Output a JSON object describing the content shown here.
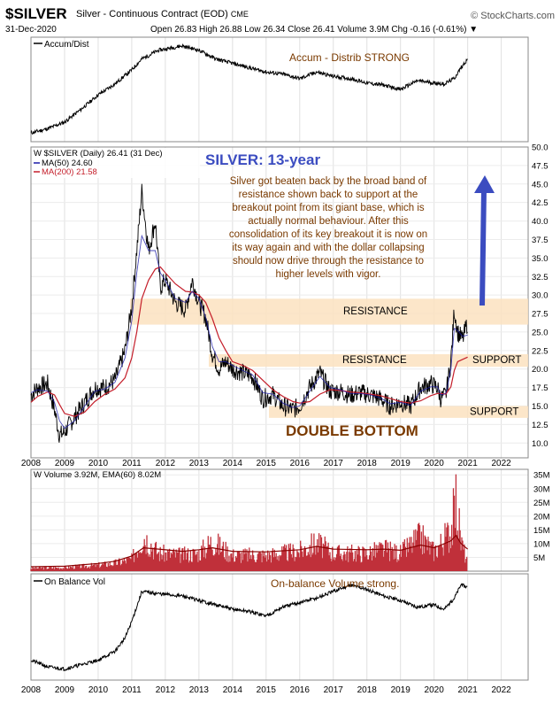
{
  "header": {
    "symbol": "$SILVER",
    "name": "Silver - Continuous Contract (EOD)",
    "exchange": "CME",
    "date": "31-Dec-2020",
    "ohlc": "Open 26.83  High 26.88  Low 26.34  Close 26.41  Volume 3.9M  Chg -0.16 (-0.61%) ▼",
    "source": "© StockCharts.com"
  },
  "colors": {
    "price": "#000000",
    "ma50": "#1a1aa8",
    "ma200": "#c41e2a",
    "band": "#fbe2c0",
    "volume": "#c0303a",
    "accent_blue": "#3b4cc0",
    "annot_brown": "#7a3a00"
  },
  "chart_data": [
    {
      "type": "line",
      "panel": "accum-dist",
      "title": "Accum/Dist",
      "annotation": "Accum - Distrib STRONG",
      "x": [
        2008.0,
        2008.5,
        2009.0,
        2009.5,
        2010.0,
        2010.5,
        2011.0,
        2011.3,
        2011.8,
        2012.5,
        2013.0,
        2013.5,
        2014.0,
        2014.5,
        2015.0,
        2015.5,
        2016.0,
        2016.5,
        2017.0,
        2017.5,
        2018.0,
        2018.5,
        2019.0,
        2019.5,
        2020.0,
        2020.3,
        2020.6,
        2020.8,
        2021.0
      ],
      "y": [
        10,
        14,
        20,
        32,
        45,
        55,
        68,
        78,
        86,
        90,
        86,
        78,
        74,
        70,
        66,
        64,
        60,
        66,
        62,
        60,
        56,
        54,
        50,
        58,
        56,
        55,
        60,
        70,
        78
      ]
    },
    {
      "type": "line",
      "panel": "price",
      "legend": [
        "$SILVER (Daily) 26.41 (31 Dec)",
        "MA(50) 24.60",
        "MA(200) 21.58"
      ],
      "title": "SILVER: 13-year",
      "note": "Silver got beaten back by the broad band of resistance shown back to support at the breakout  point from its giant base, which is actually normal behaviour. After this consolidation of its key breakout it is now on its way again and with the dollar collapsing should now drive through the resistance to higher levels with vigor.",
      "labels": {
        "resistance_upper": "RESISTANCE",
        "resistance_lower": "RESISTANCE",
        "support_mid": "SUPPORT",
        "support_low": "SUPPORT",
        "double_bottom": "DOUBLE BOTTOM"
      },
      "bands": [
        [
          26.0,
          29.5
        ],
        [
          20.3,
          22.0
        ],
        [
          13.4,
          15.0
        ]
      ],
      "ylim": [
        8.0,
        50.0
      ],
      "yticks": [
        10.0,
        12.5,
        15.0,
        17.5,
        20.0,
        22.5,
        25.0,
        27.5,
        30.0,
        32.5,
        35.0,
        37.5,
        40.0,
        42.5,
        45.0,
        47.5,
        50.0
      ],
      "x": [
        2008.0,
        2008.2,
        2008.5,
        2008.7,
        2008.85,
        2009.0,
        2009.3,
        2009.6,
        2009.9,
        2010.2,
        2010.5,
        2010.8,
        2011.0,
        2011.15,
        2011.3,
        2011.5,
        2011.7,
        2011.85,
        2012.0,
        2012.3,
        2012.6,
        2012.8,
        2013.0,
        2013.2,
        2013.4,
        2013.6,
        2013.8,
        2014.0,
        2014.3,
        2014.6,
        2014.9,
        2015.2,
        2015.5,
        2015.8,
        2016.0,
        2016.3,
        2016.6,
        2016.9,
        2017.2,
        2017.5,
        2017.8,
        2018.1,
        2018.4,
        2018.7,
        2019.0,
        2019.3,
        2019.6,
        2019.9,
        2020.1,
        2020.2,
        2020.35,
        2020.5,
        2020.6,
        2020.7,
        2020.85,
        2021.0
      ],
      "y": [
        16.5,
        17.5,
        18.0,
        14.5,
        11.0,
        11.5,
        13.5,
        15.5,
        17.5,
        17.5,
        18.5,
        22.5,
        28.5,
        36.0,
        44.0,
        36.0,
        40.0,
        31.0,
        32.0,
        29.0,
        28.0,
        32.0,
        29.0,
        27.0,
        22.0,
        20.0,
        21.0,
        20.0,
        19.5,
        19.0,
        16.0,
        16.5,
        15.0,
        14.5,
        15.0,
        17.5,
        19.5,
        17.0,
        17.0,
        16.5,
        16.8,
        16.5,
        16.0,
        15.0,
        15.5,
        15.0,
        17.5,
        18.0,
        17.5,
        16.0,
        16.5,
        21.0,
        28.0,
        25.0,
        24.0,
        26.4
      ],
      "ma50": [
        16.8,
        17.2,
        17.0,
        15.5,
        13.0,
        12.0,
        13.0,
        15.0,
        17.0,
        17.3,
        18.2,
        21.5,
        26.5,
        33.0,
        38.0,
        36.0,
        36.0,
        33.0,
        32.0,
        29.5,
        29.0,
        30.5,
        29.5,
        27.0,
        23.0,
        21.0,
        21.0,
        20.5,
        19.8,
        19.2,
        16.8,
        16.6,
        15.4,
        14.8,
        15.0,
        17.0,
        19.0,
        17.5,
        17.2,
        16.7,
        16.7,
        16.5,
        16.1,
        15.3,
        15.5,
        15.1,
        17.0,
        17.6,
        17.6,
        16.5,
        16.7,
        20.0,
        25.5,
        25.2,
        24.4,
        24.6
      ],
      "ma200": [
        15.5,
        16.3,
        16.9,
        16.5,
        15.2,
        14.0,
        13.6,
        14.2,
        15.6,
        16.6,
        17.3,
        18.8,
        21.5,
        25.0,
        29.5,
        32.0,
        33.5,
        33.8,
        33.0,
        31.5,
        30.5,
        30.4,
        30.0,
        29.0,
        26.8,
        24.2,
        22.5,
        21.0,
        20.5,
        19.8,
        18.5,
        17.2,
        16.3,
        15.6,
        15.4,
        15.6,
        16.6,
        17.2,
        17.1,
        16.9,
        16.8,
        16.6,
        16.4,
        16.0,
        15.6,
        15.4,
        15.7,
        16.4,
        16.7,
        16.7,
        16.6,
        17.6,
        19.8,
        21.0,
        21.3,
        21.6
      ]
    },
    {
      "type": "bar",
      "panel": "volume",
      "legend": [
        "Volume 3.92M, EMA(60) 8.02M"
      ],
      "ylim": [
        0,
        37
      ],
      "yticks": [
        "5M",
        "10M",
        "15M",
        "20M",
        "25M",
        "30M",
        "35M"
      ],
      "ytick_values": [
        5,
        10,
        15,
        20,
        25,
        30,
        35
      ],
      "x": [
        2008.0,
        2009.0,
        2010.0,
        2010.5,
        2011.0,
        2011.35,
        2011.8,
        2012.5,
        2013.0,
        2013.4,
        2014.0,
        2015.0,
        2016.0,
        2016.5,
        2017.0,
        2018.0,
        2018.5,
        2019.0,
        2019.6,
        2020.0,
        2020.2,
        2020.5,
        2020.65,
        2020.8,
        2021.0
      ],
      "values": [
        1.5,
        1.8,
        3.0,
        4.0,
        6.0,
        18.0,
        9.0,
        8.0,
        9.0,
        15.0,
        8.0,
        8.0,
        10.0,
        14.0,
        9.0,
        9.0,
        11.0,
        9.0,
        17.0,
        10.0,
        14.0,
        20.0,
        35.0,
        15.0,
        4.0
      ],
      "ema": [
        1.6,
        1.8,
        2.8,
        3.6,
        5.5,
        8.5,
        8.0,
        7.2,
        7.8,
        8.5,
        7.2,
        7.0,
        7.8,
        9.0,
        8.0,
        7.8,
        8.0,
        7.6,
        9.5,
        8.5,
        9.5,
        11.0,
        13.0,
        10.0,
        8.0
      ]
    },
    {
      "type": "line",
      "panel": "obv",
      "title": "On Balance Vol",
      "annotation": "On-balance Volume strong.",
      "x": [
        2008.0,
        2008.5,
        2009.0,
        2009.5,
        2010.0,
        2010.5,
        2010.8,
        2011.0,
        2011.3,
        2011.8,
        2012.5,
        2013.0,
        2013.5,
        2014.0,
        2014.5,
        2015.0,
        2015.5,
        2016.0,
        2016.5,
        2017.0,
        2017.5,
        2018.0,
        2018.5,
        2019.0,
        2019.5,
        2020.0,
        2020.3,
        2020.6,
        2020.8,
        2021.0
      ],
      "y": [
        20,
        14,
        12,
        16,
        20,
        28,
        40,
        55,
        82,
        80,
        78,
        74,
        70,
        66,
        64,
        60,
        68,
        72,
        76,
        82,
        88,
        84,
        78,
        74,
        68,
        70,
        66,
        76,
        88,
        86
      ]
    }
  ],
  "x_axis_labels": [
    "2008",
    "2009",
    "2010",
    "2011",
    "2012",
    "2013",
    "2014",
    "2015",
    "2016",
    "2017",
    "2018",
    "2019",
    "2020",
    "2021",
    "2022"
  ],
  "x_axis_values": [
    2008,
    2009,
    2010,
    2011,
    2012,
    2013,
    2014,
    2015,
    2016,
    2017,
    2018,
    2019,
    2020,
    2021,
    2022
  ]
}
